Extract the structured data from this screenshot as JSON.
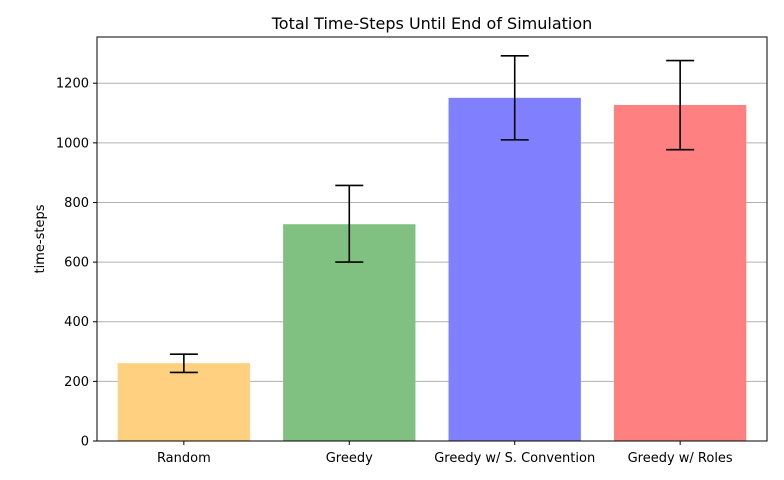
{
  "chart_data": {
    "type": "bar",
    "title": "Total Time-Steps Until End of Simulation",
    "xlabel": "",
    "ylabel": "time-steps",
    "categories": [
      "Random",
      "Greedy",
      "Greedy w/ S. Convention",
      "Greedy w/ Roles"
    ],
    "values": [
      261,
      727,
      1151,
      1127
    ],
    "error_low": [
      230,
      600,
      1010,
      977
    ],
    "error_high": [
      291,
      857,
      1292,
      1276
    ],
    "colors": [
      "#ffd080",
      "#80c080",
      "#8080ff",
      "#ff8080"
    ],
    "ylim": [
      0,
      1355
    ],
    "yticks": [
      0,
      200,
      400,
      600,
      800,
      1000,
      1200
    ],
    "ytick_labels": [
      "0",
      "200",
      "400",
      "600",
      "800",
      "1000",
      "1200"
    ],
    "grid": "horizontal",
    "legend": "none"
  }
}
